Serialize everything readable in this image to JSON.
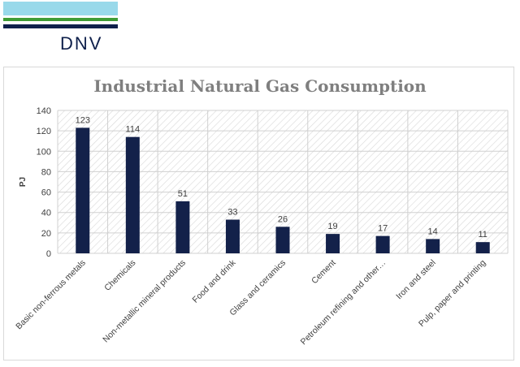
{
  "brand": {
    "name": "DNV",
    "colors": {
      "sky": "#99d9ea",
      "green": "#3f9c35",
      "navy": "#0f204b"
    }
  },
  "chart_data": {
    "type": "bar",
    "title": "Industrial Natural Gas Consumption",
    "ylabel": "PJ",
    "xlabel": "",
    "ylim": [
      0,
      140
    ],
    "yticks": [
      0,
      20,
      40,
      60,
      80,
      100,
      120,
      140
    ],
    "categories": [
      "Basic non-ferrous metals",
      "Chemicals",
      "Non-metallic mineral products",
      "Food and drink",
      "Glass and ceramics",
      "Cement",
      "Petroleum refining and other…",
      "Iron and steel",
      "Pulp, paper and printing"
    ],
    "values": [
      123,
      114,
      51,
      33,
      26,
      19,
      17,
      14,
      11
    ],
    "bar_color": "#13214a",
    "grid": true,
    "legend": "none"
  }
}
